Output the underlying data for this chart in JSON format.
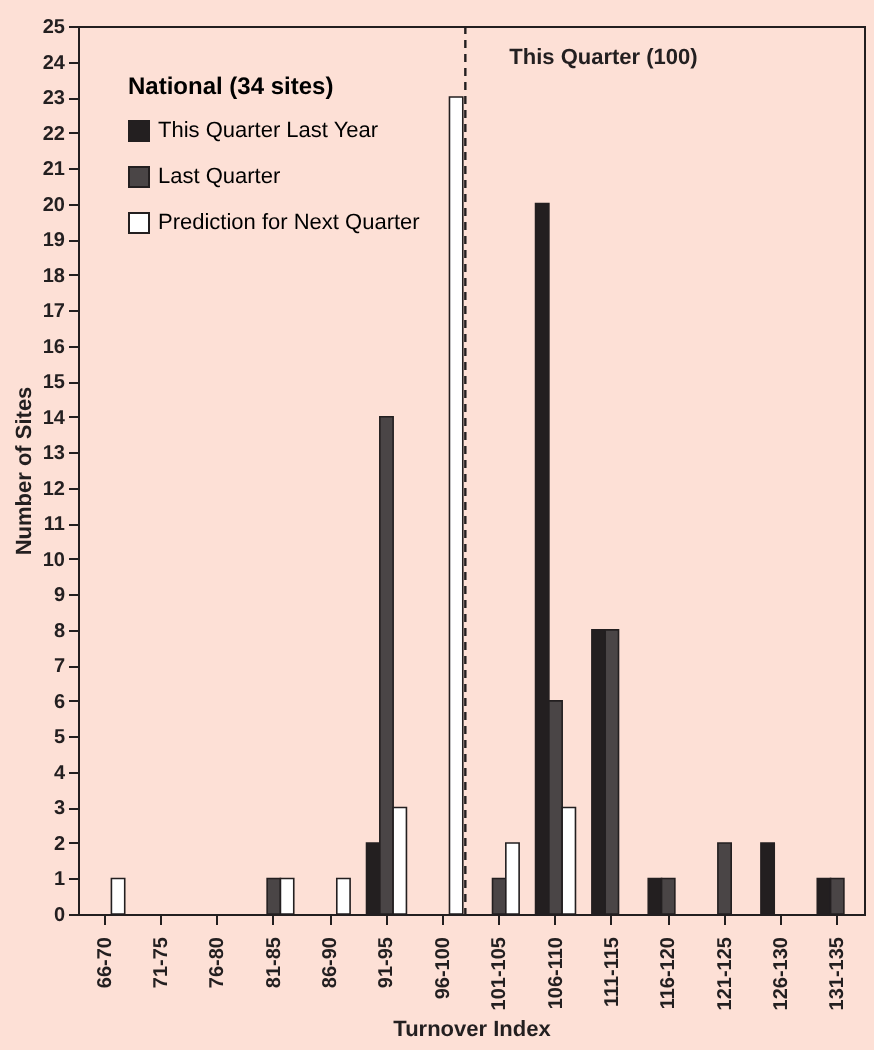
{
  "chart_data": {
    "type": "bar",
    "xlabel": "Turnover Index",
    "ylabel": "Number of Sites",
    "legend_title": "National (34 sites)",
    "categories": [
      "66-70",
      "71-75",
      "76-80",
      "81-85",
      "86-90",
      "91-95",
      "96-100",
      "101-105",
      "106-110",
      "111-115",
      "116-120",
      "121-125",
      "126-130",
      "131-135"
    ],
    "series": [
      {
        "name": "This Quarter Last Year",
        "color": "#231f20",
        "values": [
          0,
          0,
          0,
          0,
          0,
          2,
          0,
          0,
          20,
          8,
          1,
          0,
          2,
          1
        ]
      },
      {
        "name": "Last Quarter",
        "color": "#4a4546",
        "values": [
          0,
          0,
          0,
          1,
          0,
          14,
          0,
          1,
          6,
          8,
          1,
          2,
          0,
          1
        ]
      },
      {
        "name": "Prediction for Next Quarter",
        "color": "#ffffff",
        "values": [
          1,
          0,
          0,
          1,
          1,
          3,
          23,
          2,
          3,
          0,
          0,
          0,
          0,
          0
        ]
      }
    ],
    "ylim": [
      0,
      25
    ],
    "yticks": [
      0,
      1,
      2,
      3,
      4,
      5,
      6,
      7,
      8,
      9,
      10,
      11,
      12,
      13,
      14,
      15,
      16,
      17,
      18,
      19,
      20,
      21,
      22,
      23,
      24,
      25
    ],
    "ref_lines": [
      {
        "axis": "x",
        "value": "96-100",
        "label": "This Quarter (100)",
        "line_style": "dashed"
      }
    ],
    "grid": false,
    "legend": "top left"
  }
}
